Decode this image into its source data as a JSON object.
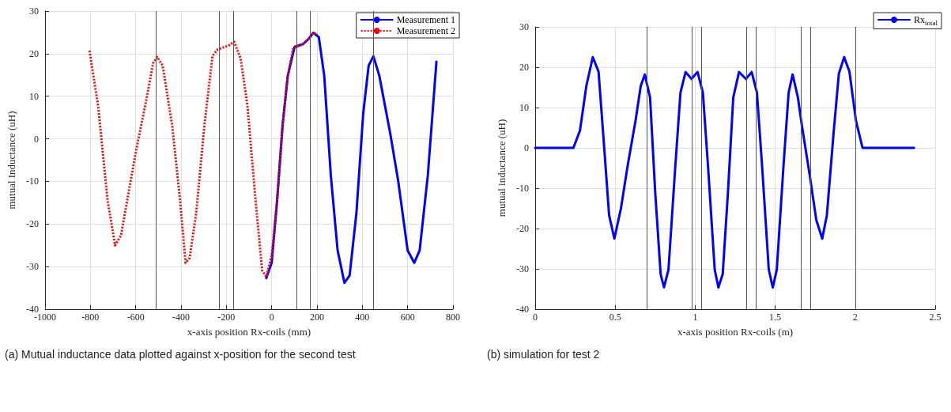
{
  "chart_data": [
    {
      "type": "line",
      "xlabel": "x-axis position Rx-coils (mm)",
      "ylabel": "mutual Inductance (uH)",
      "xlim": [
        -1000,
        800
      ],
      "xticks": [
        -1000,
        -800,
        -600,
        -400,
        -200,
        0,
        200,
        400,
        600,
        800
      ],
      "ylim": [
        -40,
        30
      ],
      "yticks": [
        -40,
        -30,
        -20,
        -10,
        0,
        10,
        20,
        30
      ],
      "grid": true,
      "legend": "top right",
      "annotations": [
        "(a) Mutual inductance data plotted against x-position for the second test"
      ],
      "ref_lines": [
        {
          "axis": "x",
          "value": -510,
          "color": "#555555"
        },
        {
          "axis": "x",
          "value": -230,
          "color": "#555555"
        },
        {
          "axis": "x",
          "value": -170,
          "color": "#555555"
        },
        {
          "axis": "x",
          "value": 110,
          "color": "#555555"
        },
        {
          "axis": "x",
          "value": 170,
          "color": "#555555"
        },
        {
          "axis": "x",
          "value": 450,
          "color": "#555555"
        }
      ],
      "series": [
        {
          "name": "Measurement 1",
          "color": "#0000ff",
          "line_style": "solid",
          "x": [
            -24,
            0,
            24,
            48,
            71,
            101,
            137,
            160,
            184,
            208,
            232,
            261,
            291,
            321,
            344,
            374,
            404,
            428,
            449,
            475,
            523,
            558,
            600,
            629,
            653,
            689,
            727
          ],
          "values": [
            -32.7,
            -29.1,
            -14.5,
            3.1,
            14.8,
            21.6,
            22.2,
            23.3,
            24.9,
            23.9,
            14.8,
            -8.6,
            -26.2,
            -33.8,
            -32.1,
            -17.4,
            6,
            17.2,
            19.4,
            14.8,
            1.3,
            -9.8,
            -26.2,
            -29.1,
            -26.2,
            -8.6,
            18.1
          ]
        },
        {
          "name": "Measurement 2",
          "color": "#ff0000",
          "line_style": "dotted",
          "x": [
            -804,
            -766,
            -724,
            -691,
            -665,
            -618,
            -594,
            -558,
            -523,
            -505,
            -481,
            -439,
            -404,
            -380,
            -362,
            -333,
            -297,
            -261,
            -238,
            -190,
            -166,
            -137,
            -107,
            -71,
            -42,
            -24,
            0,
            24,
            48,
            71,
            95,
            137,
            166,
            184,
            202
          ],
          "values": [
            20.7,
            7.8,
            -14.5,
            -25,
            -22.7,
            -8.6,
            -1.6,
            7.8,
            17.8,
            19.2,
            17.2,
            3.1,
            -14.5,
            -29.1,
            -28,
            -17.4,
            3.1,
            19.5,
            21,
            21.9,
            22.8,
            18.9,
            7.8,
            -14.5,
            -30.9,
            -32.4,
            -27.4,
            -14.5,
            3.1,
            14.8,
            21.3,
            22.2,
            23.6,
            24.9,
            24.5
          ]
        }
      ]
    },
    {
      "type": "line",
      "xlabel": "x-axis position Rx-coils (m)",
      "ylabel": "mutual inductance (uH)",
      "xlim": [
        0,
        2.5
      ],
      "xticks": [
        0,
        0.5,
        1,
        1.5,
        2,
        2.5
      ],
      "ylim": [
        -40,
        30
      ],
      "yticks": [
        -40,
        -30,
        -20,
        -10,
        0,
        10,
        20,
        30
      ],
      "grid": true,
      "legend": "top right",
      "annotations": [
        "(b) simulation for test 2"
      ],
      "ref_lines": [
        {
          "axis": "x",
          "value": 0.7,
          "color": "#555555"
        },
        {
          "axis": "x",
          "value": 0.98,
          "color": "#555555"
        },
        {
          "axis": "x",
          "value": 1.04,
          "color": "#555555"
        },
        {
          "axis": "x",
          "value": 1.32,
          "color": "#555555"
        },
        {
          "axis": "x",
          "value": 1.38,
          "color": "#555555"
        },
        {
          "axis": "x",
          "value": 1.66,
          "color": "#555555"
        },
        {
          "axis": "x",
          "value": 1.72,
          "color": "#555555"
        },
        {
          "axis": "x",
          "value": 2.0,
          "color": "#555555"
        }
      ],
      "series": [
        {
          "name": "Rx$_{total}$",
          "color": "#0000ff",
          "line_style": "solid",
          "x": [
            0,
            0.239,
            0.28,
            0.32,
            0.36,
            0.396,
            0.43,
            0.462,
            0.495,
            0.536,
            0.578,
            0.627,
            0.66,
            0.685,
            0.718,
            0.75,
            0.784,
            0.805,
            0.833,
            0.875,
            0.908,
            0.94,
            0.977,
            1.015,
            1.048,
            1.081,
            1.122,
            1.145,
            1.172,
            1.205,
            1.238,
            1.274,
            1.317,
            1.353,
            1.386,
            1.419,
            1.46,
            1.485,
            1.51,
            1.551,
            1.584,
            1.609,
            1.642,
            1.667,
            1.716,
            1.757,
            1.794,
            1.823,
            1.865,
            1.898,
            1.931,
            1.964,
            2.005,
            2.046,
            2.368
          ],
          "values": [
            0,
            0,
            4.3,
            15.4,
            22.5,
            18.9,
            0.8,
            -16.7,
            -22.5,
            -15,
            -4.4,
            6.7,
            15.4,
            18.2,
            12.5,
            -10.9,
            -31.3,
            -34.6,
            -30.2,
            -5,
            13.7,
            18.8,
            17.1,
            18.8,
            13.7,
            -5,
            -30.2,
            -34.6,
            -31.3,
            -10.9,
            12.5,
            18.8,
            17.1,
            18.8,
            13.7,
            -5,
            -30.2,
            -34.6,
            -30.2,
            -5,
            13.7,
            18.2,
            12.5,
            5.5,
            -6.8,
            -17.9,
            -22.5,
            -16.7,
            3.7,
            18.4,
            22.5,
            18.9,
            6.7,
            0,
            0
          ]
        }
      ]
    }
  ]
}
